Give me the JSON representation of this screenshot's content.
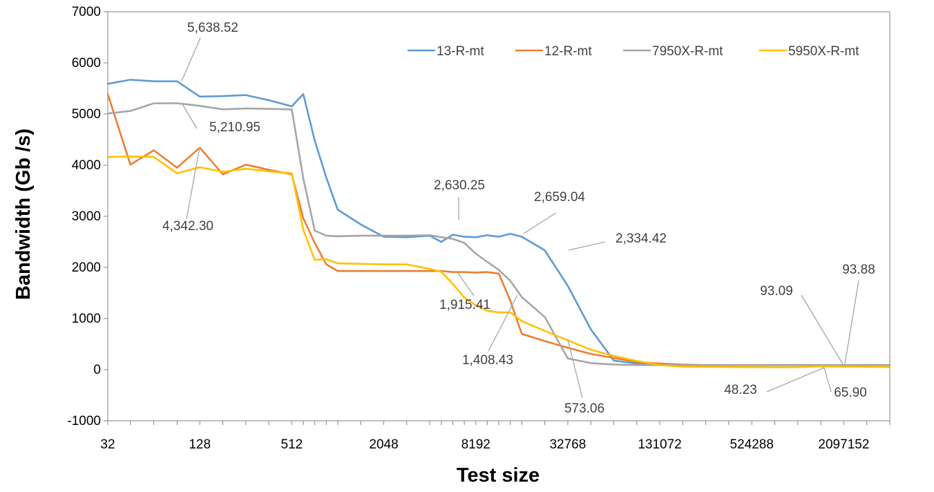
{
  "chart_data": {
    "type": "line",
    "title": "",
    "xlabel": "Test size",
    "ylabel": "Bandwidth (Gb /s)",
    "x_scale": "log2",
    "x_tick_labels": [
      "32",
      "128",
      "512",
      "2048",
      "8192",
      "32768",
      "131072",
      "524288",
      "2097152"
    ],
    "x": [
      32,
      45,
      64,
      91,
      128,
      181,
      256,
      362,
      512,
      609,
      724,
      861,
      1024,
      1448,
      2048,
      2896,
      4096,
      4871,
      5793,
      6889,
      8192,
      9742,
      11585,
      13777,
      16384,
      23170,
      32768,
      46341,
      65536,
      92682,
      131072,
      185364,
      262144,
      370728,
      524288,
      741455,
      1048576,
      1482910,
      2097152,
      2965821,
      4194304
    ],
    "ylim": [
      -1000,
      7000
    ],
    "y_ticks": [
      -1000,
      0,
      1000,
      2000,
      3000,
      4000,
      5000,
      6000,
      7000
    ],
    "grid": false,
    "legend_position": "top-right",
    "series": [
      {
        "name": "13-R-mt",
        "color": "#5B9BD5",
        "values": [
          5590,
          5670,
          5640,
          5638.52,
          5340,
          5350,
          5370,
          5270,
          5150,
          5390,
          4480,
          3760,
          3130,
          2840,
          2600,
          2590,
          2620,
          2500,
          2640,
          2600,
          2590,
          2630,
          2600,
          2659.04,
          2600,
          2334.42,
          1640,
          790,
          180,
          120,
          100,
          90,
          90,
          90,
          90,
          90,
          90,
          90,
          90,
          93.88,
          90
        ]
      },
      {
        "name": "12-R-mt",
        "color": "#ED7D31",
        "values": [
          5390,
          4010,
          4290,
          3950,
          4342.3,
          3820,
          4010,
          3910,
          3820,
          2960,
          2480,
          2060,
          1930,
          1930,
          1930,
          1930,
          1930,
          1930,
          1910,
          1910,
          1900,
          1910,
          1880,
          1350,
          700,
          560,
          430,
          310,
          230,
          150,
          120,
          100,
          90,
          90,
          90,
          90,
          90,
          90,
          90,
          90,
          90
        ]
      },
      {
        "name": "7950X-R-mt",
        "color": "#A5A5A5",
        "values": [
          5010,
          5060,
          5210,
          5210.95,
          5160,
          5090,
          5110,
          5100,
          5090,
          3740,
          2720,
          2620,
          2610,
          2620,
          2620,
          2620,
          2630.25,
          2590,
          2560,
          2480,
          2270,
          2110,
          1950,
          1740,
          1420,
          1030,
          220,
          130,
          100,
          90,
          90,
          90,
          90,
          90,
          90,
          90,
          93.09,
          90,
          90,
          90,
          90
        ]
      },
      {
        "name": "5950X-R-mt",
        "color": "#FFC000",
        "values": [
          4160,
          4170,
          4160,
          3840,
          3960,
          3870,
          3930,
          3880,
          3840,
          2740,
          2150,
          2160,
          2080,
          2070,
          2060,
          2060,
          1970,
          1915.41,
          1680,
          1408.43,
          1260,
          1150,
          1120,
          1120,
          950,
          760,
          573.06,
          390,
          270,
          170,
          90,
          60,
          55,
          52,
          50,
          48.23,
          48,
          65.9,
          60,
          55,
          50
        ]
      }
    ],
    "annotations": [
      {
        "text": "5,638.52",
        "x": 91,
        "y": 5638.52
      },
      {
        "text": "5,210.95",
        "x": 91,
        "y": 5210.95
      },
      {
        "text": "4,342.30",
        "x": 128,
        "y": 4342.3
      },
      {
        "text": "2,630.25",
        "x": 6889,
        "y": 2630.25
      },
      {
        "text": "2,659.04",
        "x": 16384,
        "y": 2659.04
      },
      {
        "text": "2,334.42",
        "x": 32768,
        "y": 2334.42
      },
      {
        "text": "1,915.41",
        "x": 5793,
        "y": 1915.41
      },
      {
        "text": "1,408.43",
        "x": 13777,
        "y": 1408.43
      },
      {
        "text": "573.06",
        "x": 23170,
        "y": 573.06
      },
      {
        "text": "93.09",
        "x": 2097152,
        "y": 93.09
      },
      {
        "text": "93.88",
        "x": 2097152,
        "y": 93.88
      },
      {
        "text": "48.23",
        "x": 1482910,
        "y": 48.23
      },
      {
        "text": "65.90",
        "x": 1482910,
        "y": 65.9
      }
    ]
  }
}
